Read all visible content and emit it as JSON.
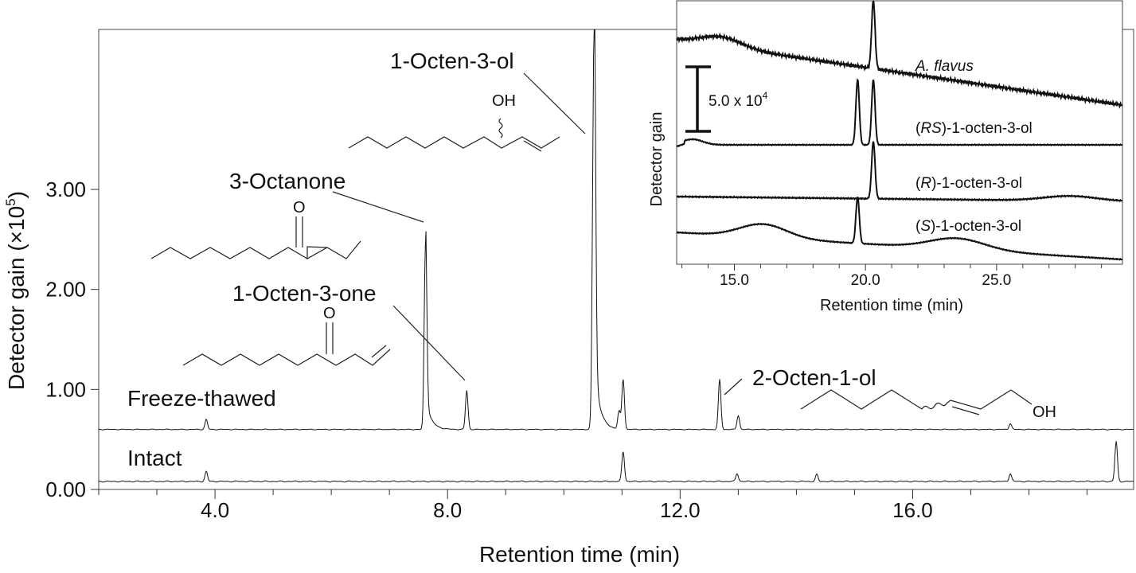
{
  "chart_data": [
    {
      "type": "line",
      "xlabel": "Retention time (min)",
      "ylabel": "Detector gain (×10",
      "ylabel_sup": "5",
      "ylabel_end": ")",
      "xlim": [
        2.0,
        19.8
      ],
      "ylim": [
        0.0,
        4.6
      ],
      "xticks": [
        4.0,
        8.0,
        12.0,
        16.0
      ],
      "xtick_labels": [
        "4.0",
        "8.0",
        "12.0",
        "16.0"
      ],
      "yticks": [
        0.0,
        1.0,
        2.0,
        3.0
      ],
      "ytick_labels": [
        "0.00",
        "1.00",
        "2.00",
        "3.00"
      ],
      "grid": false,
      "series": [
        {
          "name": "Freeze-thawed",
          "baseline": 0.6,
          "peaks": [
            {
              "rt": 3.85,
              "height": 0.1
            },
            {
              "rt": 7.62,
              "height": 1.84
            },
            {
              "rt": 8.33,
              "height": 0.39
            },
            {
              "rt": 10.52,
              "height": 4.0
            },
            {
              "rt": 10.95,
              "height": 0.18
            },
            {
              "rt": 11.02,
              "height": 0.5
            },
            {
              "rt": 12.68,
              "height": 0.5
            },
            {
              "rt": 13.0,
              "height": 0.14
            },
            {
              "rt": 17.68,
              "height": 0.06
            }
          ]
        },
        {
          "name": "Intact",
          "baseline": 0.08,
          "peaks": [
            {
              "rt": 3.85,
              "height": 0.1
            },
            {
              "rt": 11.02,
              "height": 0.3
            },
            {
              "rt": 12.98,
              "height": 0.08
            },
            {
              "rt": 14.35,
              "height": 0.07
            },
            {
              "rt": 17.68,
              "height": 0.08
            },
            {
              "rt": 19.5,
              "height": 0.4
            }
          ]
        }
      ],
      "annotations": [
        {
          "text": "1-Octen-3-ol",
          "rt": 10.52
        },
        {
          "text": "3-Octanone",
          "rt": 7.62
        },
        {
          "text": "1-Octen-3-one",
          "rt": 8.33
        },
        {
          "text": "2-Octen-1-ol",
          "rt": 12.68
        }
      ],
      "structure_labels": {
        "hydroxyl": "OH",
        "carbonyl": "O"
      }
    },
    {
      "type": "line",
      "title": "",
      "xlabel": "Retention time (min)",
      "ylabel": "Detector gain",
      "xlim": [
        12.8,
        29.8
      ],
      "xticks": [
        15.0,
        20.0,
        25.0
      ],
      "xtick_labels": [
        "15.0",
        "20.0",
        "25.0"
      ],
      "scale_bar": {
        "label": "5.0 x 10",
        "sup": "4"
      },
      "series": [
        {
          "name": "A. flavus",
          "name_italic": true,
          "peaks": [
            20.3
          ]
        },
        {
          "name_prefix": "(",
          "name_italic_part": "RS",
          "name_suffix": ")-1-octen-3-ol",
          "peaks": [
            19.7,
            20.3
          ]
        },
        {
          "name_prefix": "(",
          "name_italic_part": "R",
          "name_suffix": ")-1-octen-3-ol",
          "peaks": [
            20.3
          ]
        },
        {
          "name_prefix": "(",
          "name_italic_part": "S",
          "name_suffix": ")-1-octen-3-ol",
          "peaks": [
            19.7
          ]
        }
      ]
    }
  ]
}
